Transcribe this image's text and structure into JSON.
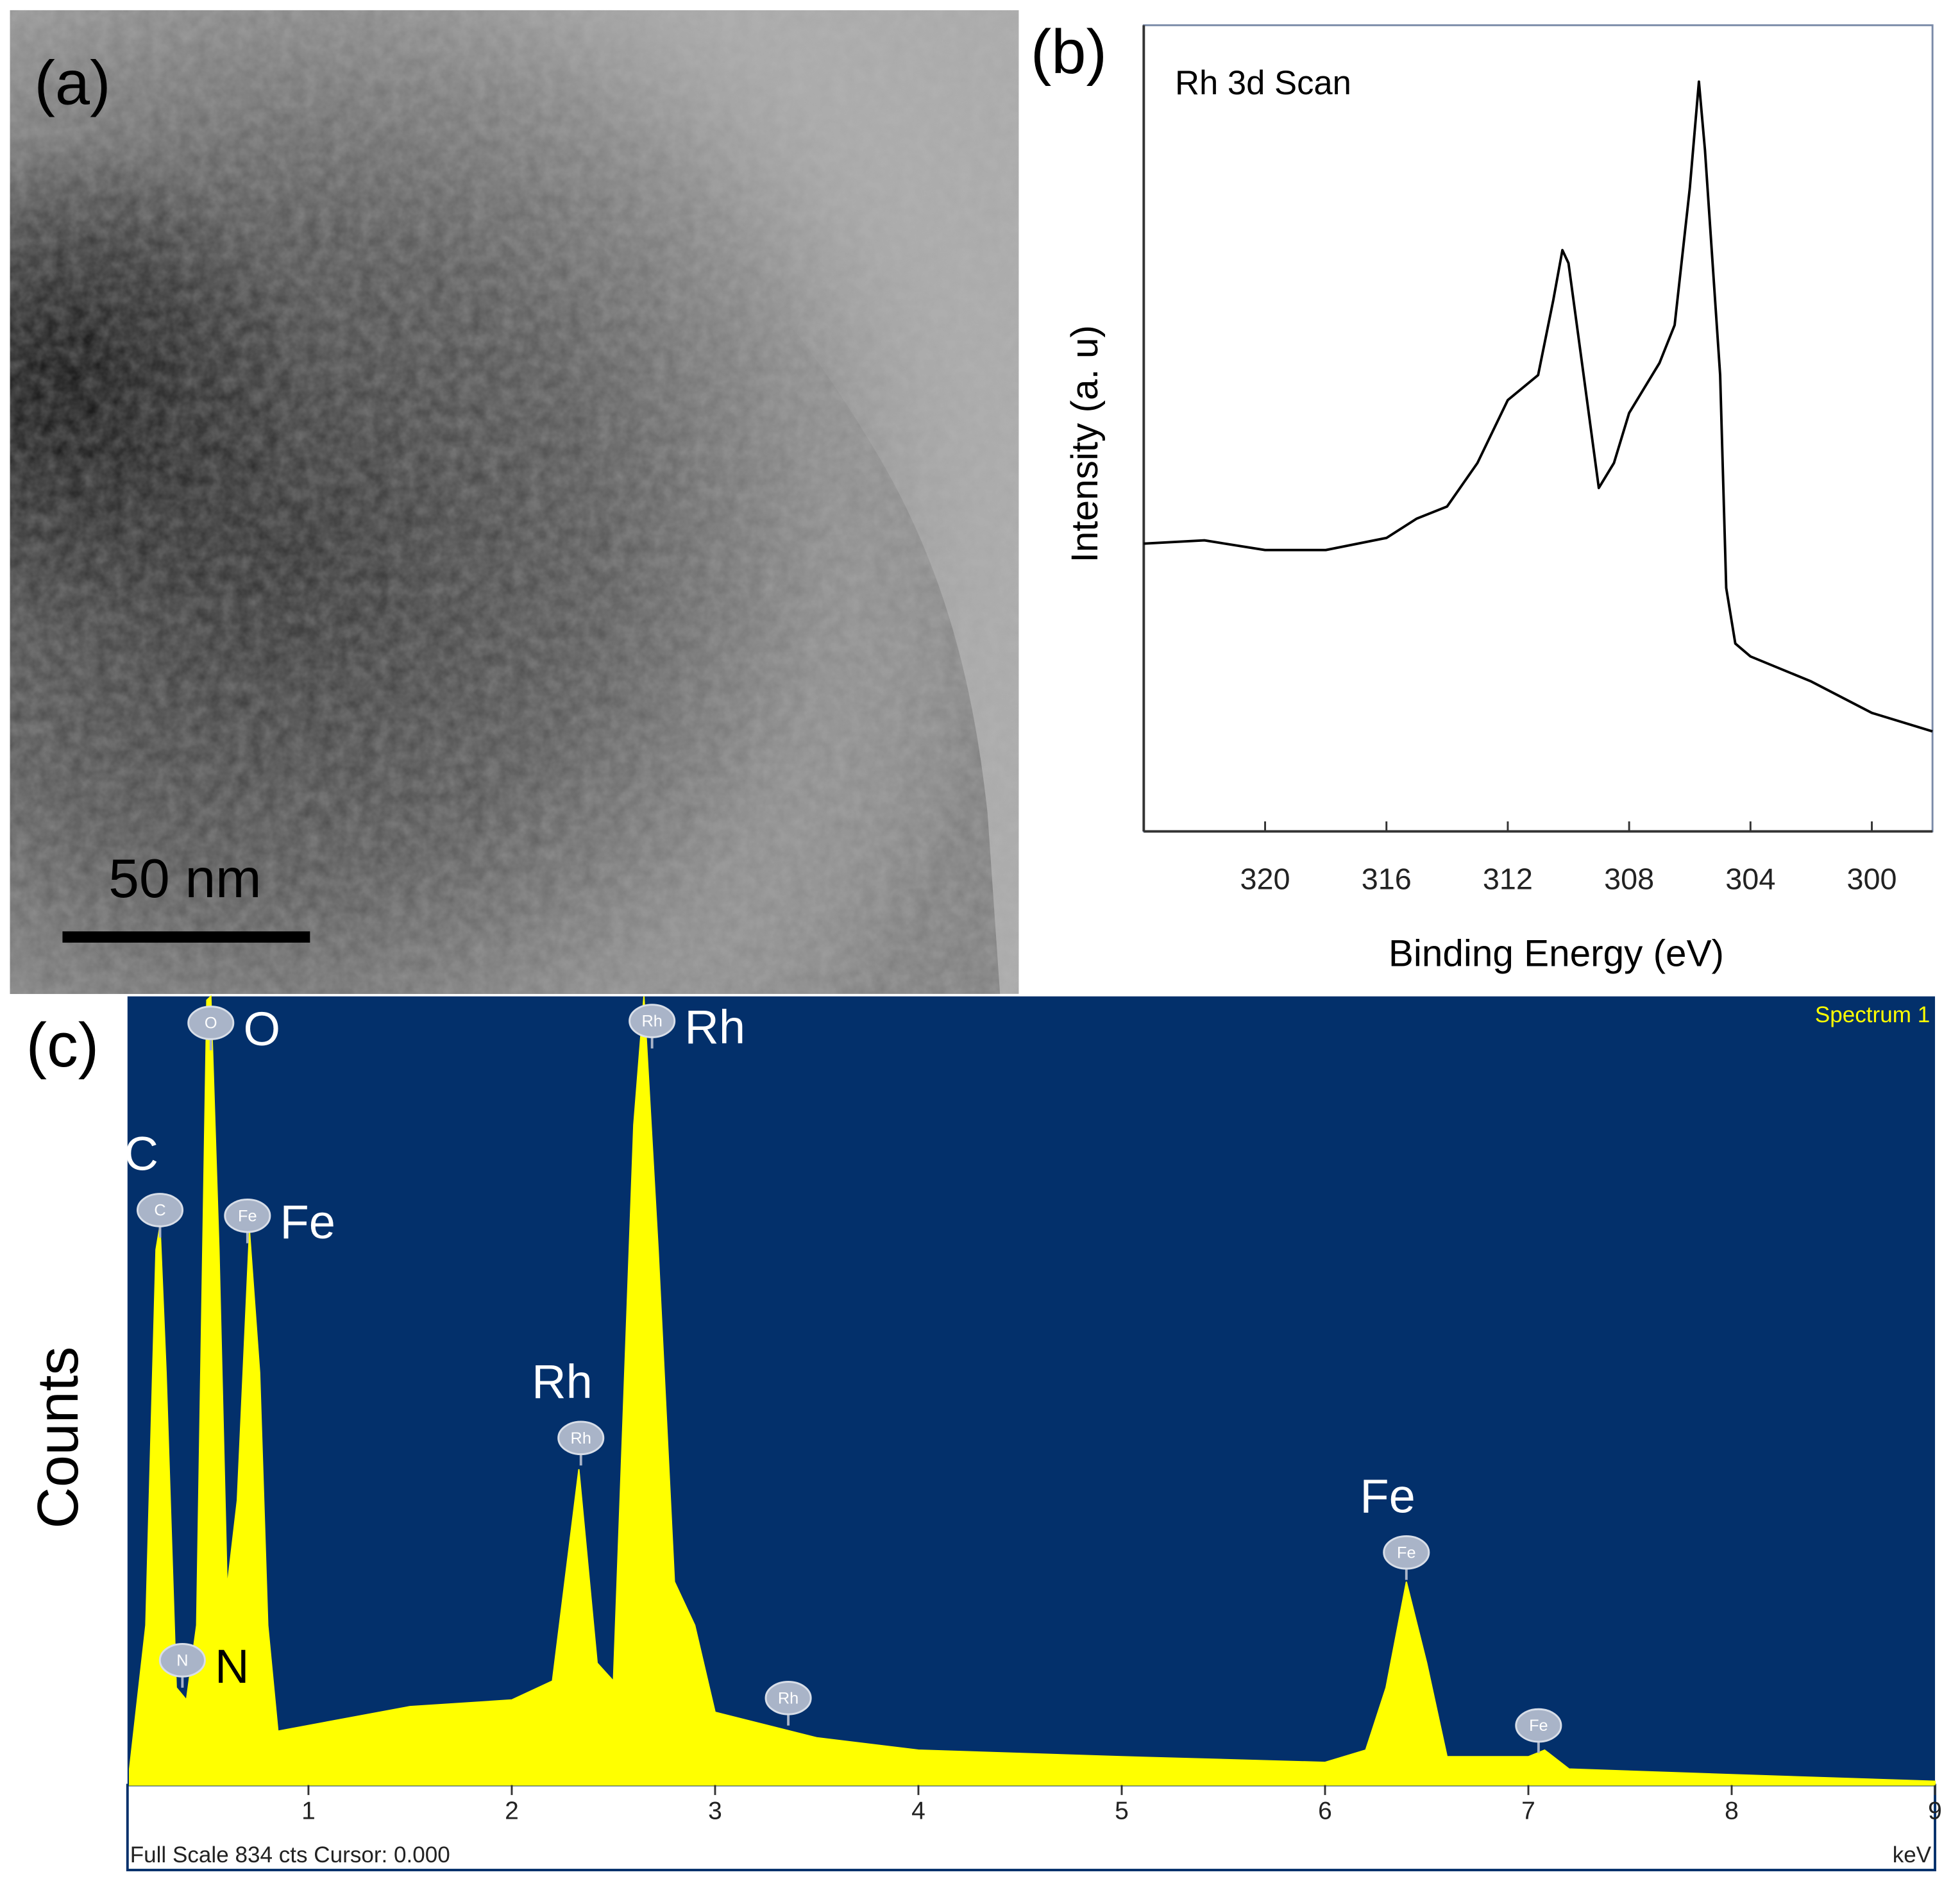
{
  "image_panel": {
    "label": "(a)",
    "scale_bar": "50 nm"
  },
  "chart_data": [
    {
      "type": "line",
      "panel_label": "(b)",
      "title": "Rh 3d Scan",
      "x_label": "Binding Energy (eV)",
      "y_label": "Intensity (a. u)",
      "x": [
        324,
        322,
        320,
        318,
        316,
        315,
        314,
        313,
        312,
        311,
        310.5,
        310.2,
        310,
        309.5,
        309,
        308.5,
        308,
        307.5,
        307,
        306.5,
        306,
        305.7,
        305.5,
        305,
        304.8,
        304.5,
        304,
        302,
        300,
        298
      ],
      "values": [
        35.7,
        36.1,
        34.9,
        34.9,
        36.4,
        38.8,
        40.3,
        45.7,
        53.5,
        56.6,
        65.9,
        72.1,
        70.5,
        56.6,
        42.6,
        45.7,
        51.9,
        55.0,
        58.1,
        62.8,
        79.8,
        93.0,
        84.5,
        56.6,
        30.2,
        23.3,
        21.7,
        18.6,
        14.7,
        12.4
      ],
      "color": "#000000",
      "xlim": [
        324,
        298
      ],
      "xticks": [
        320,
        316,
        312,
        308,
        304,
        300
      ],
      "ylim": [
        0,
        100
      ]
    },
    {
      "type": "area",
      "panel_label": "(c)",
      "y_label": "Counts",
      "x_unit": "keV",
      "spectrum_label": "Spectrum 1",
      "footer": "Full Scale 834 cts Cursor: 0.000",
      "x": [
        0.12,
        0.2,
        0.25,
        0.27,
        0.3,
        0.35,
        0.4,
        0.45,
        0.5,
        0.52,
        0.56,
        0.6,
        0.65,
        0.71,
        0.76,
        0.8,
        0.85,
        1.0,
        1.5,
        2.0,
        2.2,
        2.33,
        2.42,
        2.5,
        2.6,
        2.65,
        2.72,
        2.8,
        2.9,
        3.0,
        3.5,
        4.0,
        5.0,
        6.0,
        6.2,
        6.3,
        6.4,
        6.5,
        6.6,
        7.0,
        7.08,
        7.2,
        8.0,
        9.0
      ],
      "values": [
        17,
        169,
        566,
        592,
        436,
        103,
        90,
        169,
        830,
        834,
        566,
        209,
        301,
        586,
        436,
        169,
        57,
        63,
        83,
        90,
        110,
        334,
        129,
        110,
        698,
        834,
        566,
        215,
        169,
        77,
        50,
        37,
        30,
        24,
        37,
        103,
        215,
        129,
        30,
        30,
        37,
        17,
        11,
        4
      ],
      "color": "#ffff00",
      "background": "#03306b",
      "xlim": [
        0.11,
        9
      ],
      "xticks": [
        1,
        2,
        3,
        4,
        5,
        6,
        7,
        8,
        9
      ],
      "ylim": [
        0,
        834
      ],
      "peaks": [
        {
          "marker": "C",
          "label": "C",
          "label_side": "above",
          "x": 0.27,
          "y": 608
        },
        {
          "marker": "O",
          "label": "O",
          "label_side": "right",
          "x": 0.52,
          "y": 806
        },
        {
          "marker": "Fe",
          "label": "Fe",
          "label_side": "right",
          "x": 0.7,
          "y": 602
        },
        {
          "marker": "N",
          "label": "N",
          "label_side": "right",
          "x": 0.38,
          "y": 132
        },
        {
          "marker": "Rh",
          "label": "Rh",
          "label_side": "above",
          "x": 2.34,
          "y": 367
        },
        {
          "marker": "Rh",
          "label": "Rh",
          "label_side": "right",
          "x": 2.69,
          "y": 808
        },
        {
          "marker": "Rh",
          "x": 3.36,
          "y": 92
        },
        {
          "marker": "Fe",
          "label": "Fe",
          "label_side": "above",
          "x": 6.4,
          "y": 246
        },
        {
          "marker": "Fe",
          "x": 7.05,
          "y": 63
        }
      ]
    }
  ]
}
